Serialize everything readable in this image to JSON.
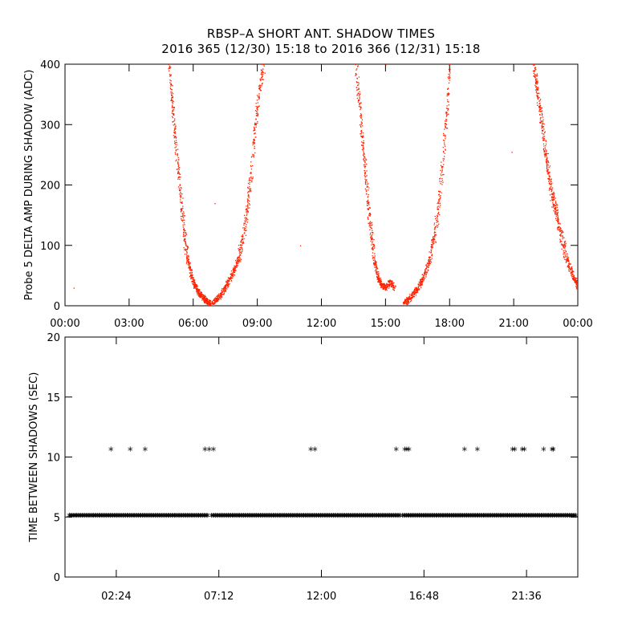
{
  "header": {
    "title_line1": "RBSP–A SHORT ANT. SHADOW TIMES",
    "title_line2": "2016 365 (12/30) 15:18 to 2016 366 (12/31) 15:18"
  },
  "chart_data": [
    {
      "type": "scatter",
      "name": "delta-amp",
      "ylabel": "Probe 5 DELTA AMP DURING SHADOW (ADC)",
      "xlabel": "",
      "xlim": [
        0,
        24
      ],
      "ylim": [
        0,
        400
      ],
      "y_ticks": [
        0,
        100,
        200,
        300,
        400
      ],
      "x_ticks": [
        0,
        3,
        6,
        9,
        12,
        15,
        18,
        21,
        24
      ],
      "x_tick_labels": [
        "00:00",
        "03:00",
        "06:00",
        "09:00",
        "12:00",
        "15:00",
        "18:00",
        "21:00",
        "00:00"
      ],
      "color": "#ff2200",
      "series": [
        {
          "name": "descending-1",
          "x": [
            4.85,
            5.0,
            5.15,
            5.3,
            5.45,
            5.6,
            5.75,
            5.9,
            6.05,
            6.2,
            6.35,
            6.5,
            6.65,
            6.8
          ],
          "y": [
            400,
            340,
            280,
            220,
            160,
            110,
            75,
            50,
            35,
            25,
            18,
            12,
            8,
            4
          ]
        },
        {
          "name": "ascending-1",
          "x": [
            6.9,
            7.1,
            7.3,
            7.5,
            7.7,
            7.9,
            8.1,
            8.3,
            8.5,
            8.7,
            8.9,
            9.1,
            9.3
          ],
          "y": [
            5,
            12,
            20,
            32,
            45,
            60,
            80,
            110,
            160,
            220,
            300,
            360,
            400
          ]
        },
        {
          "name": "descending-2",
          "x": [
            13.6,
            13.75,
            13.9,
            14.05,
            14.2,
            14.35,
            14.5,
            14.65,
            14.8,
            15.0,
            15.2,
            15.4
          ],
          "y": [
            400,
            340,
            280,
            220,
            160,
            110,
            70,
            45,
            35,
            30,
            40,
            30
          ]
        },
        {
          "name": "ascending-2",
          "x": [
            15.85,
            16.05,
            16.25,
            16.45,
            16.65,
            16.85,
            17.05,
            17.25,
            17.45,
            17.65,
            17.85,
            18.0
          ],
          "y": [
            5,
            10,
            18,
            28,
            40,
            55,
            80,
            110,
            160,
            230,
            320,
            400
          ]
        },
        {
          "name": "descending-3",
          "x": [
            21.9,
            22.05,
            22.2,
            22.35,
            22.5,
            22.65,
            22.8,
            22.95,
            23.1,
            23.3,
            23.5,
            23.7,
            23.9,
            24.0
          ],
          "y": [
            400,
            370,
            330,
            290,
            250,
            210,
            180,
            160,
            130,
            100,
            75,
            55,
            40,
            30
          ]
        }
      ]
    },
    {
      "type": "scatter",
      "name": "time-between-shadows",
      "ylabel": "TIME BETWEEN SHADOWS (SEC)",
      "xlabel": "",
      "xlim": [
        0,
        24
      ],
      "ylim": [
        0,
        20
      ],
      "y_ticks": [
        0,
        5,
        10,
        15,
        20
      ],
      "x_ticks": [
        2.4,
        7.2,
        12.0,
        16.8,
        21.6
      ],
      "x_tick_labels": [
        "02:24",
        "07:12",
        "12:00",
        "16:48",
        "21:36"
      ],
      "marker": "*",
      "color": "#000000",
      "baseline_value": 5.3,
      "baseline_gaps": [
        6.75,
        15.75
      ],
      "series": [
        {
          "name": "outliers",
          "x": [
            2.15,
            3.05,
            3.75,
            6.55,
            6.75,
            6.95,
            11.5,
            11.7,
            15.5,
            15.9,
            16.0,
            16.1,
            18.7,
            19.3,
            20.95,
            21.05,
            21.4,
            21.5,
            22.4,
            22.8,
            22.85
          ],
          "y": [
            10.8,
            10.8,
            10.8,
            10.8,
            10.8,
            10.8,
            10.8,
            10.8,
            10.8,
            10.8,
            10.8,
            10.8,
            10.8,
            10.8,
            10.8,
            10.8,
            10.8,
            10.8,
            10.8,
            10.8,
            10.8
          ]
        }
      ]
    }
  ]
}
